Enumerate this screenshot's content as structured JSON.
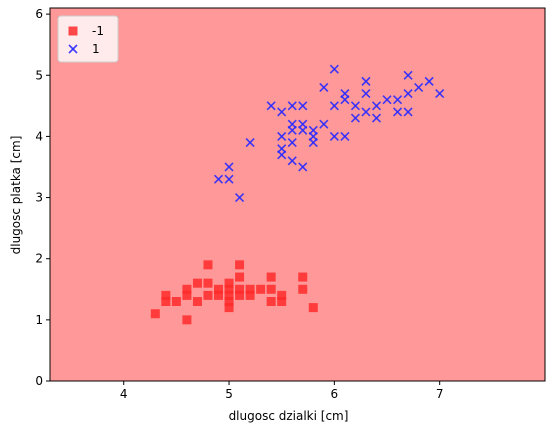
{
  "chart_data": {
    "type": "scatter",
    "title": "",
    "xlabel": "dlugosc dzialki [cm]",
    "ylabel": "dlugosc platka [cm]",
    "xlim": [
      3.3,
      8.0
    ],
    "ylim": [
      0,
      6.1
    ],
    "xticks": [
      "4",
      "5",
      "6",
      "7"
    ],
    "yticks": [
      "0",
      "1",
      "2",
      "3",
      "4",
      "5",
      "6"
    ],
    "background_region": {
      "label": "-1",
      "color": "#ff9999"
    },
    "grid": false,
    "legend_position": "top-left",
    "series": [
      {
        "name": "-1",
        "marker": "square",
        "color": "#ff2a2a",
        "points": [
          [
            4.3,
            1.1
          ],
          [
            4.4,
            1.3
          ],
          [
            4.4,
            1.4
          ],
          [
            4.5,
            1.3
          ],
          [
            4.6,
            1.0
          ],
          [
            4.6,
            1.4
          ],
          [
            4.6,
            1.5
          ],
          [
            4.7,
            1.3
          ],
          [
            4.7,
            1.6
          ],
          [
            4.8,
            1.4
          ],
          [
            4.8,
            1.6
          ],
          [
            4.8,
            1.9
          ],
          [
            4.9,
            1.4
          ],
          [
            4.9,
            1.5
          ],
          [
            5.0,
            1.2
          ],
          [
            5.0,
            1.3
          ],
          [
            5.0,
            1.4
          ],
          [
            5.0,
            1.5
          ],
          [
            5.0,
            1.6
          ],
          [
            5.1,
            1.4
          ],
          [
            5.1,
            1.5
          ],
          [
            5.1,
            1.7
          ],
          [
            5.1,
            1.9
          ],
          [
            5.2,
            1.4
          ],
          [
            5.2,
            1.5
          ],
          [
            5.3,
            1.5
          ],
          [
            5.4,
            1.3
          ],
          [
            5.4,
            1.5
          ],
          [
            5.4,
            1.7
          ],
          [
            5.5,
            1.3
          ],
          [
            5.5,
            1.4
          ],
          [
            5.7,
            1.5
          ],
          [
            5.7,
            1.7
          ],
          [
            5.8,
            1.2
          ]
        ]
      },
      {
        "name": "1",
        "marker": "x",
        "color": "#2a2aff",
        "points": [
          [
            4.9,
            3.3
          ],
          [
            5.0,
            3.3
          ],
          [
            5.0,
            3.5
          ],
          [
            5.1,
            3.0
          ],
          [
            5.2,
            3.9
          ],
          [
            5.4,
            4.5
          ],
          [
            5.5,
            3.7
          ],
          [
            5.5,
            3.8
          ],
          [
            5.5,
            4.0
          ],
          [
            5.5,
            4.4
          ],
          [
            5.6,
            3.6
          ],
          [
            5.6,
            3.9
          ],
          [
            5.6,
            4.1
          ],
          [
            5.6,
            4.2
          ],
          [
            5.6,
            4.5
          ],
          [
            5.7,
            3.5
          ],
          [
            5.7,
            4.1
          ],
          [
            5.7,
            4.2
          ],
          [
            5.7,
            4.5
          ],
          [
            5.8,
            3.9
          ],
          [
            5.8,
            4.0
          ],
          [
            5.8,
            4.1
          ],
          [
            5.9,
            4.2
          ],
          [
            5.9,
            4.8
          ],
          [
            6.0,
            4.0
          ],
          [
            6.0,
            4.5
          ],
          [
            6.0,
            5.1
          ],
          [
            6.1,
            4.0
          ],
          [
            6.1,
            4.6
          ],
          [
            6.1,
            4.7
          ],
          [
            6.2,
            4.3
          ],
          [
            6.2,
            4.5
          ],
          [
            6.3,
            4.4
          ],
          [
            6.3,
            4.7
          ],
          [
            6.3,
            4.9
          ],
          [
            6.4,
            4.3
          ],
          [
            6.4,
            4.5
          ],
          [
            6.5,
            4.6
          ],
          [
            6.6,
            4.4
          ],
          [
            6.6,
            4.6
          ],
          [
            6.7,
            4.4
          ],
          [
            6.7,
            4.7
          ],
          [
            6.7,
            5.0
          ],
          [
            6.8,
            4.8
          ],
          [
            6.9,
            4.9
          ],
          [
            7.0,
            4.7
          ]
        ]
      }
    ]
  }
}
